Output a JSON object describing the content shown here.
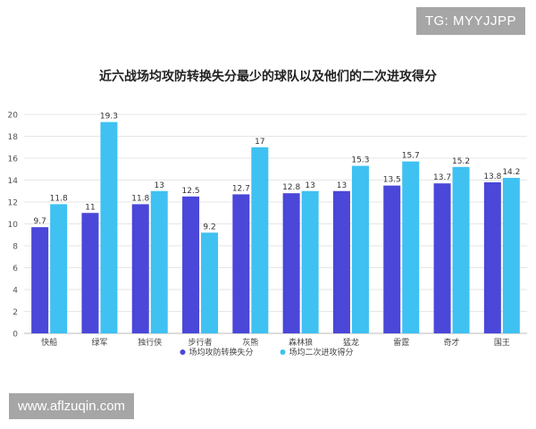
{
  "watermarks": {
    "top_right": "TG: MYYJJPP",
    "bottom_left": "www.aflzuqin.com"
  },
  "chart_data": {
    "type": "bar",
    "title": "近六战场均攻防转换失分最少的球队以及他们的二次进攻得分",
    "xlabel": "",
    "ylabel": "",
    "ylim": [
      0,
      20
    ],
    "yticks": [
      0,
      2,
      4,
      6,
      8,
      10,
      12,
      14,
      16,
      18,
      20
    ],
    "grid": true,
    "legend_position": "bottom",
    "categories": [
      "快船",
      "绿军",
      "独行侠",
      "步行者",
      "灰熊",
      "森林狼",
      "猛龙",
      "雷霆",
      "奇才",
      "国王"
    ],
    "series": [
      {
        "name": "场均攻防转换失分",
        "color": "#4a47d9",
        "values": [
          9.7,
          11,
          11.8,
          12.5,
          12.7,
          12.8,
          13,
          13.5,
          13.7,
          13.8
        ],
        "labels": [
          "9.7",
          "11",
          "11.8",
          "12.5",
          "12.7",
          "12.8",
          "13",
          "13.5",
          "13.7",
          "13.8"
        ]
      },
      {
        "name": "场均二次进攻得分",
        "color": "#3fc1f2",
        "values": [
          11.8,
          19.3,
          13,
          9.2,
          17,
          13,
          15.3,
          15.7,
          15.2,
          14.2
        ],
        "labels": [
          "11.8",
          "19.3",
          "13",
          "9.2",
          "17",
          "13",
          "15.3",
          "15.7",
          "15.2",
          "14.2"
        ]
      }
    ]
  }
}
